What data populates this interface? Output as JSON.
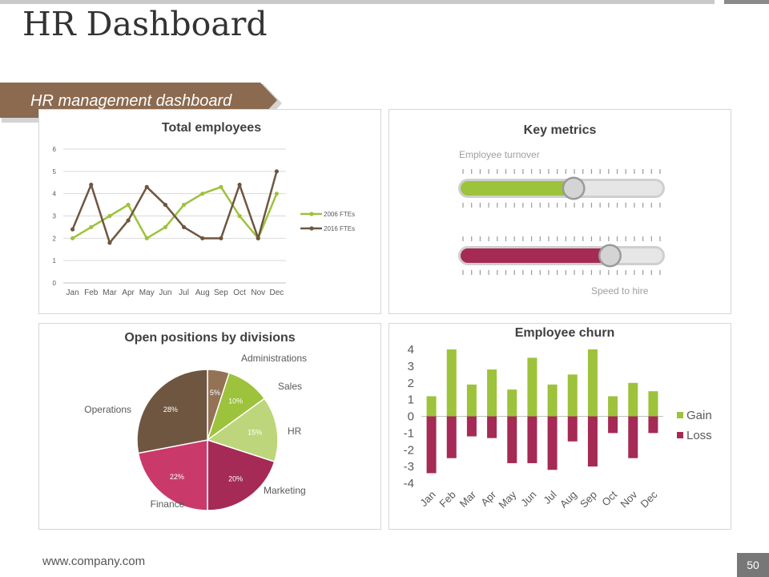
{
  "title": "HR Dashboard",
  "banner": {
    "label": "HR management dashboard",
    "color": "#8b6a4f"
  },
  "footer": {
    "url": "www.company.com",
    "page": "50"
  },
  "colors": {
    "green": "#9dc23b",
    "light_green": "#bed67b",
    "brown": "#6e5640",
    "maroon": "#a52a55",
    "pink": "#c93a6b",
    "tan": "#947256",
    "grey": "#d9d9d9"
  },
  "total_employees": {
    "title": "Total employees",
    "chart_data": {
      "type": "line",
      "categories": [
        "Jan",
        "Feb",
        "Mar",
        "Apr",
        "May",
        "Jun",
        "Jul",
        "Aug",
        "Sep",
        "Oct",
        "Nov",
        "Dec"
      ],
      "ylim": [
        0,
        6
      ],
      "yticks": [
        "0",
        "1",
        "2",
        "3",
        "4",
        "5",
        "6"
      ],
      "series": [
        {
          "name": "2006 FTEs",
          "color": "#9dc23b",
          "values": [
            2,
            2.5,
            3,
            3.5,
            2,
            2.5,
            3.5,
            4,
            4.3,
            3,
            2,
            4
          ]
        },
        {
          "name": "2016 FTEs",
          "color": "#6e5640",
          "values": [
            2.4,
            4.4,
            1.8,
            2.8,
            4.3,
            3.5,
            2.5,
            2,
            2,
            4.4,
            2,
            5
          ]
        }
      ],
      "legend": "right",
      "grid": true
    }
  },
  "key_metrics": {
    "title": "Key metrics",
    "gauges": [
      {
        "label": "Employee turnover",
        "value": 0.56,
        "color": "#9dc23b"
      },
      {
        "label": "Speed to hire",
        "value": 0.74,
        "color": "#a52a55"
      }
    ]
  },
  "open_positions": {
    "title": "Open positions by divisions",
    "chart_data": {
      "type": "pie",
      "slices": [
        {
          "name": "Administrations",
          "value": 5,
          "label": "5%",
          "color": "#947256"
        },
        {
          "name": "Sales",
          "value": 10,
          "label": "10%",
          "color": "#9dc23b"
        },
        {
          "name": "HR",
          "value": 15,
          "label": "15%",
          "color": "#bed67b"
        },
        {
          "name": "Marketing",
          "value": 20,
          "label": "20%",
          "color": "#a52a55"
        },
        {
          "name": "Finance",
          "value": 22,
          "label": "22%",
          "color": "#c93a6b"
        },
        {
          "name": "Operations",
          "value": 28,
          "label": "28%",
          "color": "#6e5640"
        }
      ]
    }
  },
  "employee_churn": {
    "title": "Employee churn",
    "chart_data": {
      "type": "bar",
      "categories": [
        "Jan",
        "Feb",
        "Mar",
        "Apr",
        "May",
        "Jun",
        "Jul",
        "Aug",
        "Sep",
        "Oct",
        "Nov",
        "Dec"
      ],
      "ylim": [
        -4,
        4
      ],
      "yticks": [
        "-4",
        "-3",
        "-2",
        "-1",
        "0",
        "1",
        "2",
        "3",
        "4"
      ],
      "series": [
        {
          "name": "Gain",
          "color": "#9dc23b",
          "values": [
            1.2,
            4,
            1.9,
            2.8,
            1.6,
            3.5,
            1.9,
            2.5,
            4,
            1.2,
            2,
            1.5
          ]
        },
        {
          "name": "Loss",
          "color": "#a52a55",
          "values": [
            -3.4,
            -2.5,
            -1.2,
            -1.3,
            -2.8,
            -2.8,
            -3.2,
            -1.5,
            -3,
            -1,
            -2.5,
            -1
          ]
        }
      ],
      "legend": "right",
      "grid": false
    }
  }
}
